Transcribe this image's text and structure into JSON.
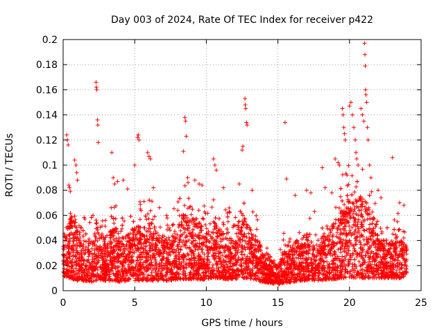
{
  "chart_data": {
    "type": "scatter",
    "title": "Day 003 of 2024, Rate Of TEC Index for receiver p422",
    "xlabel": "GPS time / hours",
    "ylabel": "ROTI / TECUs",
    "xlim": [
      0,
      25
    ],
    "ylim": [
      0,
      0.2
    ],
    "grid": true,
    "marker": "+",
    "color": "#ff0000",
    "x_ticks": [
      "0",
      "5",
      "10",
      "15",
      "20",
      "25"
    ],
    "y_ticks": [
      "0",
      "0.02",
      "0.04",
      "0.06",
      "0.08",
      "0.1",
      "0.12",
      "0.14",
      "0.16",
      "0.18",
      "0.2"
    ],
    "series": [
      {
        "name": "ROTI",
        "points": [
          [
            0.25,
            0.124
          ],
          [
            0.3,
            0.12
          ],
          [
            0.35,
            0.116
          ],
          [
            0.4,
            0.084
          ],
          [
            0.45,
            0.082
          ],
          [
            0.5,
            0.079
          ],
          [
            0.8,
            0.104
          ],
          [
            0.9,
            0.1
          ],
          [
            0.95,
            0.094
          ],
          [
            1.0,
            0.088
          ],
          [
            2.3,
            0.166
          ],
          [
            2.32,
            0.162
          ],
          [
            2.35,
            0.16
          ],
          [
            2.4,
            0.136
          ],
          [
            2.42,
            0.132
          ],
          [
            2.45,
            0.118
          ],
          [
            3.4,
            0.11
          ],
          [
            3.5,
            0.09
          ],
          [
            3.6,
            0.085
          ],
          [
            3.8,
            0.087
          ],
          [
            4.2,
            0.088
          ],
          [
            4.5,
            0.081
          ],
          [
            5.0,
            0.1
          ],
          [
            5.2,
            0.122
          ],
          [
            5.25,
            0.124
          ],
          [
            5.3,
            0.12
          ],
          [
            5.9,
            0.11
          ],
          [
            6.0,
            0.107
          ],
          [
            6.1,
            0.105
          ],
          [
            6.3,
            0.082
          ],
          [
            8.5,
            0.138
          ],
          [
            8.55,
            0.135
          ],
          [
            8.6,
            0.123
          ],
          [
            8.4,
            0.111
          ],
          [
            8.7,
            0.09
          ],
          [
            9.2,
            0.088
          ],
          [
            9.5,
            0.085
          ],
          [
            9.7,
            0.084
          ],
          [
            10.5,
            0.105
          ],
          [
            10.6,
            0.1
          ],
          [
            10.7,
            0.096
          ],
          [
            11.2,
            0.082
          ],
          [
            12.3,
            0.085
          ],
          [
            12.5,
            0.112
          ],
          [
            12.55,
            0.115
          ],
          [
            12.7,
            0.153
          ],
          [
            12.72,
            0.148
          ],
          [
            12.75,
            0.145
          ],
          [
            12.8,
            0.134
          ],
          [
            12.85,
            0.132
          ],
          [
            13.2,
            0.08
          ],
          [
            15.5,
            0.134
          ],
          [
            15.6,
            0.089
          ],
          [
            16.2,
            0.076
          ],
          [
            17.0,
            0.08
          ],
          [
            17.3,
            0.078
          ],
          [
            18.1,
            0.098
          ],
          [
            18.3,
            0.082
          ],
          [
            19.0,
            0.105
          ],
          [
            19.2,
            0.102
          ],
          [
            19.3,
            0.1
          ],
          [
            19.5,
            0.145
          ],
          [
            19.55,
            0.14
          ],
          [
            19.6,
            0.13
          ],
          [
            19.65,
            0.125
          ],
          [
            19.7,
            0.12
          ],
          [
            20.0,
            0.147
          ],
          [
            20.1,
            0.15
          ],
          [
            20.2,
            0.14
          ],
          [
            20.3,
            0.13
          ],
          [
            20.4,
            0.12
          ],
          [
            20.45,
            0.11
          ],
          [
            20.5,
            0.105
          ],
          [
            20.6,
            0.1
          ],
          [
            20.8,
            0.145
          ],
          [
            20.9,
            0.14
          ],
          [
            21.0,
            0.135
          ],
          [
            21.05,
            0.197
          ],
          [
            21.08,
            0.188
          ],
          [
            21.1,
            0.179
          ],
          [
            21.12,
            0.16
          ],
          [
            21.15,
            0.156
          ],
          [
            21.2,
            0.15
          ],
          [
            21.25,
            0.13
          ],
          [
            21.3,
            0.12
          ],
          [
            21.4,
            0.1
          ],
          [
            21.5,
            0.09
          ],
          [
            22.0,
            0.08
          ],
          [
            22.2,
            0.074
          ],
          [
            23.0,
            0.106
          ],
          [
            23.5,
            0.07
          ],
          [
            23.8,
            0.068
          ]
        ],
        "dense_band": [
          [
            0.0,
            0.012,
            0.034,
            0.05
          ],
          [
            0.5,
            0.01,
            0.05,
            0.075
          ],
          [
            1.0,
            0.008,
            0.04,
            0.065
          ],
          [
            1.5,
            0.008,
            0.03,
            0.06
          ],
          [
            2.0,
            0.007,
            0.032,
            0.06
          ],
          [
            2.5,
            0.008,
            0.045,
            0.075
          ],
          [
            3.0,
            0.008,
            0.03,
            0.055
          ],
          [
            3.5,
            0.008,
            0.042,
            0.085
          ],
          [
            4.0,
            0.007,
            0.032,
            0.06
          ],
          [
            4.5,
            0.008,
            0.036,
            0.07
          ],
          [
            5.0,
            0.008,
            0.045,
            0.09
          ],
          [
            5.5,
            0.008,
            0.04,
            0.07
          ],
          [
            6.0,
            0.008,
            0.045,
            0.08
          ],
          [
            6.5,
            0.008,
            0.04,
            0.07
          ],
          [
            7.0,
            0.008,
            0.036,
            0.065
          ],
          [
            7.5,
            0.008,
            0.034,
            0.06
          ],
          [
            8.0,
            0.009,
            0.04,
            0.075
          ],
          [
            8.5,
            0.009,
            0.05,
            0.09
          ],
          [
            9.0,
            0.009,
            0.05,
            0.09
          ],
          [
            9.5,
            0.009,
            0.045,
            0.08
          ],
          [
            10.0,
            0.009,
            0.036,
            0.065
          ],
          [
            10.5,
            0.01,
            0.045,
            0.08
          ],
          [
            11.0,
            0.01,
            0.04,
            0.075
          ],
          [
            11.5,
            0.009,
            0.034,
            0.065
          ],
          [
            12.0,
            0.009,
            0.036,
            0.07
          ],
          [
            12.5,
            0.01,
            0.05,
            0.085
          ],
          [
            13.0,
            0.01,
            0.042,
            0.07
          ],
          [
            13.5,
            0.008,
            0.036,
            0.06
          ],
          [
            14.0,
            0.007,
            0.025,
            0.04
          ],
          [
            14.5,
            0.006,
            0.02,
            0.035
          ],
          [
            15.0,
            0.005,
            0.018,
            0.03
          ],
          [
            15.5,
            0.006,
            0.026,
            0.05
          ],
          [
            16.0,
            0.007,
            0.03,
            0.06
          ],
          [
            16.5,
            0.008,
            0.03,
            0.06
          ],
          [
            17.0,
            0.008,
            0.03,
            0.075
          ],
          [
            17.5,
            0.008,
            0.028,
            0.065
          ],
          [
            18.0,
            0.008,
            0.034,
            0.07
          ],
          [
            18.5,
            0.009,
            0.042,
            0.08
          ],
          [
            19.0,
            0.009,
            0.045,
            0.09
          ],
          [
            19.5,
            0.01,
            0.055,
            0.1
          ],
          [
            20.0,
            0.01,
            0.06,
            0.1
          ],
          [
            20.5,
            0.01,
            0.06,
            0.1
          ],
          [
            21.0,
            0.01,
            0.06,
            0.1
          ],
          [
            21.5,
            0.01,
            0.05,
            0.09
          ],
          [
            22.0,
            0.01,
            0.036,
            0.07
          ],
          [
            22.5,
            0.01,
            0.03,
            0.06
          ],
          [
            23.0,
            0.01,
            0.032,
            0.06
          ],
          [
            23.5,
            0.01,
            0.034,
            0.065
          ],
          [
            24.0,
            0.012,
            0.03,
            0.06
          ]
        ]
      }
    ]
  }
}
